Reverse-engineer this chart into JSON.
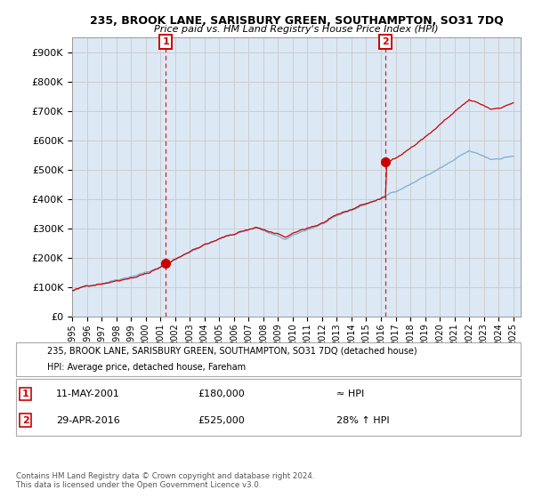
{
  "title1": "235, BROOK LANE, SARISBURY GREEN, SOUTHAMPTON, SO31 7DQ",
  "title2": "Price paid vs. HM Land Registry's House Price Index (HPI)",
  "ylabel_ticks": [
    "£0",
    "£100K",
    "£200K",
    "£300K",
    "£400K",
    "£500K",
    "£600K",
    "£700K",
    "£800K",
    "£900K"
  ],
  "ytick_values": [
    0,
    100000,
    200000,
    300000,
    400000,
    500000,
    600000,
    700000,
    800000,
    900000
  ],
  "ylim": [
    0,
    950000
  ],
  "xlim_start": 1995.0,
  "xlim_end": 2025.5,
  "transaction1_x": 2001.36,
  "transaction1_y": 180000,
  "transaction1_label": "1",
  "transaction1_date": "11-MAY-2001",
  "transaction1_price": "£180,000",
  "transaction1_rel": "≈ HPI",
  "transaction2_x": 2016.33,
  "transaction2_y": 525000,
  "transaction2_label": "2",
  "transaction2_date": "29-APR-2016",
  "transaction2_price": "£525,000",
  "transaction2_rel": "28% ↑ HPI",
  "legend_line1": "235, BROOK LANE, SARISBURY GREEN, SOUTHAMPTON, SO31 7DQ (detached house)",
  "legend_line2": "HPI: Average price, detached house, Fareham",
  "footer": "Contains HM Land Registry data © Crown copyright and database right 2024.\nThis data is licensed under the Open Government Licence v3.0.",
  "line_color_red": "#cc0000",
  "line_color_blue": "#7aadcf",
  "grid_color": "#cccccc",
  "background_color": "#ffffff",
  "plot_bg_color": "#dce9f5",
  "vline_color": "#cc0000",
  "annotation_box_color": "#cc0000"
}
